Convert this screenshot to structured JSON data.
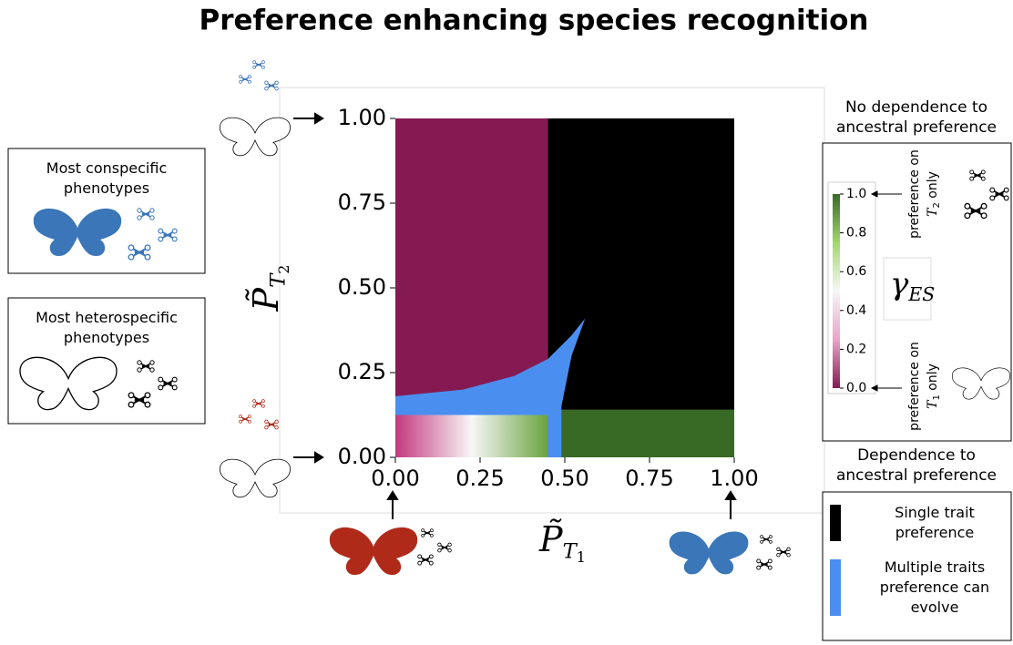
{
  "chart_data": {
    "type": "region-map",
    "title": "Preference enhancing species recognition",
    "x_label": {
      "symbol": "P̃",
      "subscript": "T",
      "index": "1"
    },
    "y_label": {
      "symbol": "P̃",
      "subscript": "T",
      "index": "2"
    },
    "xlim": [
      0,
      1
    ],
    "ylim": [
      0,
      1
    ],
    "xticks": [
      {
        "value": 0,
        "label": "0.00"
      },
      {
        "value": 0.25,
        "label": "0.25"
      },
      {
        "value": 0.5,
        "label": "0.50"
      },
      {
        "value": 0.75,
        "label": "0.75"
      },
      {
        "value": 1,
        "label": "1.00"
      }
    ],
    "yticks": [
      {
        "value": 0,
        "label": "0.00"
      },
      {
        "value": 0.25,
        "label": "0.25"
      },
      {
        "value": 0.5,
        "label": "0.50"
      },
      {
        "value": 0.75,
        "label": "0.75"
      },
      {
        "value": 1,
        "label": "1.00"
      }
    ],
    "regions": [
      {
        "colors": [
          "#851a52"
        ],
        "x": [
          0,
          0.45,
          0.45,
          0
        ],
        "y": [
          0,
          0,
          1,
          1
        ]
      },
      {
        "colors": [
          "#000000"
        ],
        "x": [
          0.45,
          1,
          1,
          0.45
        ],
        "y": [
          0.14,
          0.14,
          1,
          1
        ]
      },
      {
        "colors": [
          "#386a25"
        ],
        "x": [
          0.45,
          1,
          1,
          0.45
        ],
        "y": [
          0,
          0,
          0.14,
          0.14
        ]
      },
      {
        "colors": [
          "#c2387e",
          "#f7f7f7",
          "#6aa33f"
        ],
        "x": [
          0,
          0.45,
          0.45,
          0
        ],
        "y": [
          0,
          0,
          0.125,
          0.125
        ]
      },
      {
        "colors": [
          "#4a8ff0"
        ],
        "x": [
          0,
          0.2,
          0.35,
          0.45,
          0.52,
          0.56,
          0.52,
          0.49,
          0.49,
          0.45,
          0.45,
          0
        ],
        "y": [
          0.18,
          0.2,
          0.24,
          0.29,
          0.36,
          0.41,
          0.3,
          0.15,
          0,
          0,
          0.125,
          0.125
        ]
      }
    ],
    "colorbar": {
      "label": {
        "symbol": "γ",
        "subscript": "ES"
      },
      "colors": [
        "#851a52",
        "#e9a3c9",
        "#f7f7f7",
        "#a1d76a",
        "#386a25"
      ],
      "lim": [
        0,
        1
      ],
      "ticks": [
        {
          "value": 0,
          "label": "0.0"
        },
        0.2,
        0.4,
        0.6,
        0.8,
        {
          "value": 1,
          "label": "1.0"
        }
      ],
      "top_note": {
        "line1": "preference on",
        "symbol": "T",
        "subscript": "2",
        "rest": " only"
      },
      "bottom_note": {
        "line1": "preference on",
        "symbol": "T",
        "subscript": "1",
        "rest": " only"
      }
    },
    "no_dependence_title": [
      "No dependence to",
      "ancestral preference"
    ],
    "dependence_title": [
      "Dependence to",
      "ancestral preference"
    ],
    "legend": [
      {
        "color": "#000000",
        "lines": [
          "Single trait",
          "preference"
        ]
      },
      {
        "color": "#4a8ff0",
        "lines": [
          "Multiple traits",
          "preference can",
          "evolve"
        ]
      }
    ],
    "conspecific_box": [
      "Most conspecific",
      "phenotypes"
    ],
    "heterospecific_box": [
      "Most heterospecific",
      "phenotypes"
    ]
  }
}
